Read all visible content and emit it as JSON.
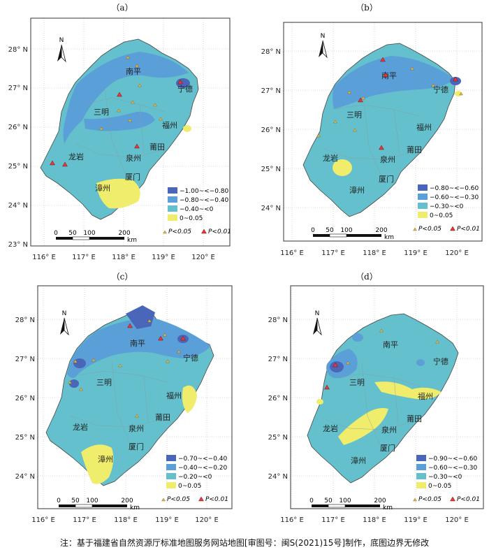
{
  "footnote": "注：基于福建省自然资源厅标准地图服务网站地图[审图号：闽S(2021)15号]制作，底图边界无修改",
  "colors": {
    "c1": "#4a66b8",
    "c2": "#5b9fd8",
    "c3": "#64c0cc",
    "c4": "#f0ec6c",
    "sig05": "#e8b64a",
    "sig01": "#e03a3a"
  },
  "north_label": "N",
  "scale": {
    "ticks": [
      "0",
      "50",
      "100",
      "200"
    ],
    "unit": "km"
  },
  "x_ticks": [
    "116° E",
    "117° E",
    "118° E",
    "119° E",
    "120° E"
  ],
  "y_ticks_a": [
    "28° N",
    "27° N",
    "26° N",
    "25° N",
    "24° N",
    "23° N"
  ],
  "y_ticks": [
    "28° N",
    "27° N",
    "26° N",
    "25° N",
    "24° N"
  ],
  "cities": {
    "nanping": "南平",
    "ningde": "宁德",
    "sanming": "三明",
    "fuzhou": "福州",
    "putian": "莆田",
    "longyan": "龙岩",
    "quanzhou": "泉州",
    "xiamen": "厦门",
    "zhangzhou": "漳州"
  },
  "sig": {
    "p05": "P<0.05",
    "p01": "P<0.01"
  },
  "panels": [
    {
      "label": "（a）",
      "legend": [
        "−1.00~<−0.80",
        "−0.80~<−0.40",
        "−0.40~<0",
        "0~0.05"
      ]
    },
    {
      "label": "（b）",
      "legend": [
        "−0.80~<−0.60",
        "−0.60~<−0.30",
        "−0.30~<0",
        "0~0.05"
      ]
    },
    {
      "label": "（c）",
      "legend": [
        "−0.70~<−0.40",
        "−0.40~<−0.20",
        "−0.20~<0",
        "0~0.05"
      ]
    },
    {
      "label": "（d）",
      "legend": [
        "−0.90~<−0.60",
        "−0.60~<−0.30",
        "−0.30~<0",
        "0~0.05"
      ]
    }
  ]
}
